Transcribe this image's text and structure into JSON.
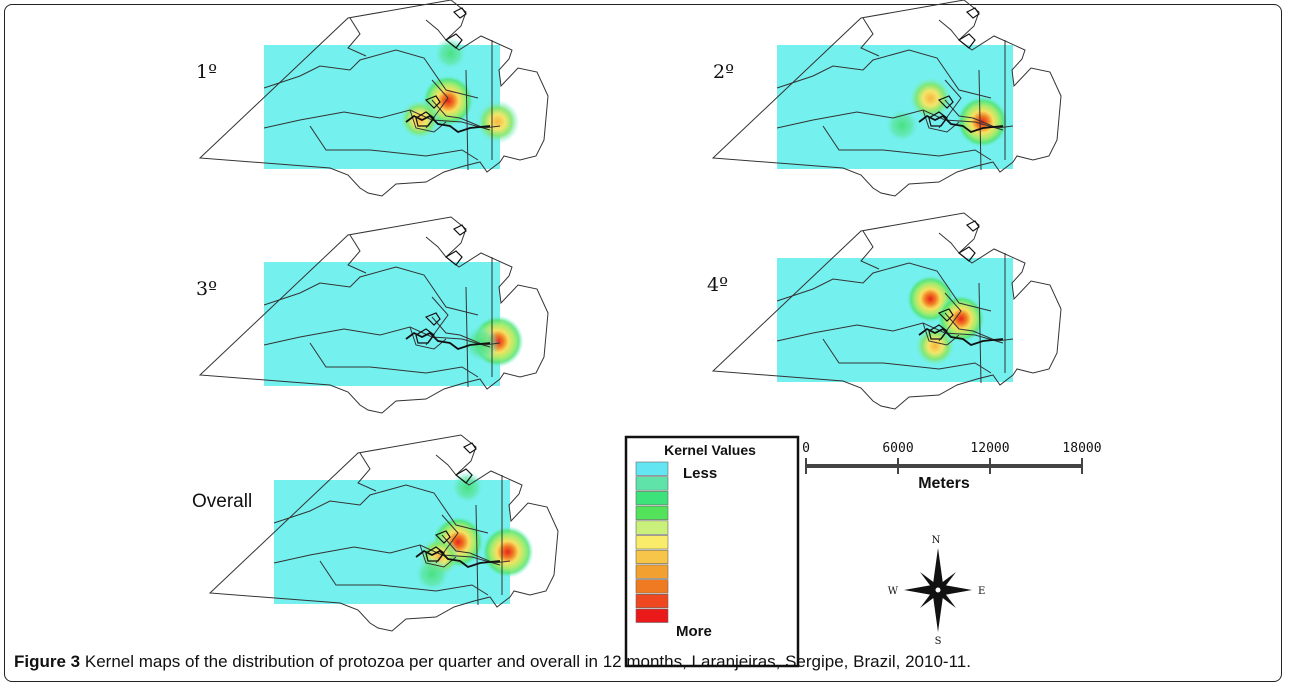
{
  "figure": {
    "caption_label": "Figure 3",
    "caption_text": "Kernel maps of the distribution of protozoa per quarter and overall in 12 months, Laranjeiras, Sergipe, Brazil, 2010-11."
  },
  "panels": [
    {
      "id": "q1",
      "label": "1º",
      "hotspots": [
        {
          "dx": 0.78,
          "dy": 0.45,
          "intensity": 1.0
        },
        {
          "dx": 0.66,
          "dy": 0.6,
          "intensity": 0.6
        },
        {
          "dx": 0.99,
          "dy": 0.62,
          "intensity": 0.7
        },
        {
          "dx": 0.79,
          "dy": 0.07,
          "intensity": 0.3
        }
      ]
    },
    {
      "id": "q2",
      "label": "2º",
      "hotspots": [
        {
          "dx": 0.87,
          "dy": 0.62,
          "intensity": 1.0
        },
        {
          "dx": 0.65,
          "dy": 0.43,
          "intensity": 0.7
        },
        {
          "dx": 0.53,
          "dy": 0.65,
          "intensity": 0.35
        }
      ]
    },
    {
      "id": "q3",
      "label": "3º",
      "hotspots": [
        {
          "dx": 0.99,
          "dy": 0.64,
          "intensity": 1.0
        },
        {
          "dx": 0.92,
          "dy": 0.66,
          "intensity": 0.45
        }
      ]
    },
    {
      "id": "q4",
      "label": "4º",
      "hotspots": [
        {
          "dx": 0.65,
          "dy": 0.33,
          "intensity": 0.85
        },
        {
          "dx": 0.78,
          "dy": 0.49,
          "intensity": 0.85
        },
        {
          "dx": 0.67,
          "dy": 0.71,
          "intensity": 0.6
        }
      ]
    },
    {
      "id": "overall",
      "label": "Overall",
      "hotspots": [
        {
          "dx": 0.78,
          "dy": 0.5,
          "intensity": 1.0
        },
        {
          "dx": 0.99,
          "dy": 0.58,
          "intensity": 1.0
        },
        {
          "dx": 0.7,
          "dy": 0.62,
          "intensity": 0.6
        },
        {
          "dx": 0.67,
          "dy": 0.76,
          "intensity": 0.4
        },
        {
          "dx": 0.82,
          "dy": 0.06,
          "intensity": 0.3
        }
      ]
    }
  ],
  "legend": {
    "title": "Kernel Values",
    "low_label": "Less",
    "high_label": "More",
    "swatches": [
      "#63e5f2",
      "#5fe3a8",
      "#3ee27a",
      "#52e35a",
      "#c8f07a",
      "#f8ec6a",
      "#f6c54a",
      "#f2a030",
      "#f07a22",
      "#ef4820",
      "#ea1a1a"
    ]
  },
  "scale_bar": {
    "ticks": [
      "0",
      "6000",
      "12000",
      "18000"
    ],
    "unit": "Meters"
  },
  "compass": {
    "north": "N",
    "south": "S",
    "east": "E",
    "west": "W"
  },
  "colors": {
    "background_raster": "#74f0ef",
    "outline": "#333333",
    "hot": "#e8221e"
  }
}
